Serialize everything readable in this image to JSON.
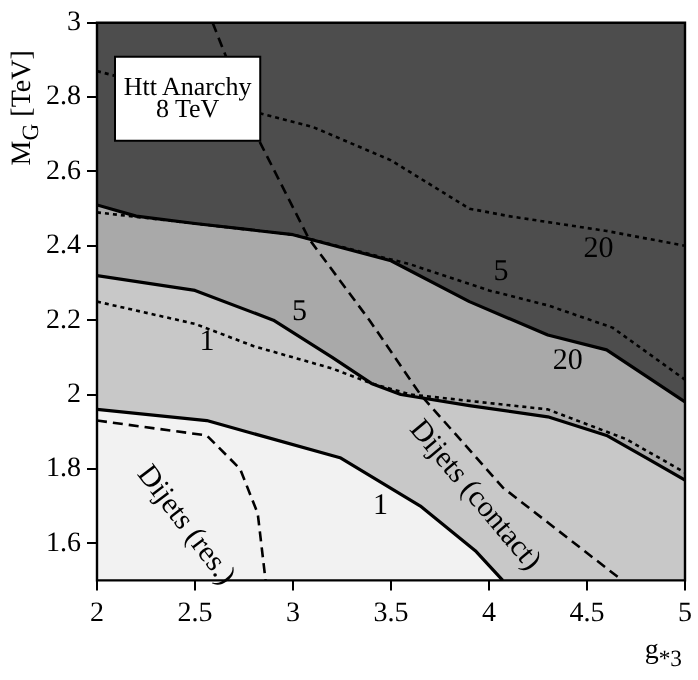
{
  "chart_data": {
    "type": "line",
    "xlabel": "g$_{*3}$",
    "ylabel": "M$_{G}$ [TeV]",
    "xlim": [
      2,
      5
    ],
    "xticks": [
      2,
      2.5,
      3,
      3.5,
      4,
      4.5,
      5
    ],
    "ylim": [
      1.5,
      3
    ],
    "yticks": [
      1.6,
      1.8,
      2,
      2.2,
      2.4,
      2.6,
      2.8,
      3
    ],
    "legend": false,
    "series": [
      {
        "type": "area",
        "color": "#a9a9a9",
        "line_style": "solid",
        "x": [
          2,
          2.2,
          2.5,
          3,
          3.5,
          3.9,
          4.3,
          4.6,
          4.8,
          5
        ],
        "values": [
          2.51,
          2.48,
          2.46,
          2.43,
          2.36,
          2.25,
          2.16,
          2.12,
          2.05,
          1.98
        ]
      },
      {
        "type": "area",
        "color": "#c8c8c8",
        "line_style": "solid",
        "x": [
          2,
          2.5,
          2.9,
          3.2,
          3.4,
          3.55,
          3.9,
          4.3,
          4.6,
          4.8,
          5
        ],
        "values": [
          2.32,
          2.28,
          2.2,
          2.1,
          2.03,
          2,
          1.97,
          1.94,
          1.89,
          1.83,
          1.77
        ]
      },
      {
        "type": "area",
        "color": "#f2f2f2",
        "line_style": "solid",
        "x": [
          2,
          2.56,
          3.24,
          3.65,
          3.93,
          4.07
        ],
        "values": [
          1.96,
          1.93,
          1.83,
          1.7,
          1.58,
          1.5
        ]
      },
      {
        "type": "line",
        "color": "#000000",
        "line_style": "dotted",
        "x": [
          2,
          2.5,
          2.8,
          3.2,
          3.4,
          3.6,
          4.3,
          4.7,
          5
        ],
        "values": [
          2.25,
          2.19,
          2.13,
          2.07,
          2.03,
          2,
          1.96,
          1.88,
          1.79
        ]
      },
      {
        "type": "line",
        "color": "#000000",
        "line_style": "dotted",
        "x": [
          2,
          3,
          3.6,
          4,
          4.3,
          4.63,
          5
        ],
        "values": [
          2.49,
          2.43,
          2.35,
          2.28,
          2.24,
          2.18,
          2.04
        ]
      },
      {
        "type": "line",
        "color": "#000000",
        "line_style": "dotted",
        "x": [
          2,
          3.1,
          3.5,
          3.9,
          4.1,
          4.6,
          5
        ],
        "values": [
          2.87,
          2.72,
          2.63,
          2.5,
          2.48,
          2.44,
          2.4
        ]
      },
      {
        "type": "line",
        "color": "#000000",
        "line_style": "dashed",
        "x": [
          2,
          2.56,
          2.73,
          2.82,
          2.86
        ],
        "values": [
          1.93,
          1.89,
          1.8,
          1.68,
          1.5
        ]
      },
      {
        "type": "line",
        "color": "#000000",
        "line_style": "dashed",
        "x": [
          2.59,
          2.83,
          3.08,
          3.39,
          3.65,
          4.07,
          4.68
        ],
        "values": [
          3,
          2.68,
          2.42,
          2.2,
          2,
          1.75,
          1.5
        ]
      }
    ],
    "annotations": [
      "Htt Anarchy\n8 TeV",
      {
        "text": "1",
        "x": 2.5,
        "y": 2.19
      },
      {
        "text": "5",
        "x": 2.9,
        "y": 2.2
      },
      {
        "text": "5",
        "x": 4.0,
        "y": 2.28
      },
      {
        "text": "20",
        "x": 4.3,
        "y": 2.16
      },
      {
        "text": "20",
        "x": 4.6,
        "y": 2.44
      },
      {
        "text": "1",
        "x": 3.65,
        "y": 1.7
      },
      {
        "text": "Dijets (res.)",
        "x": 2.82,
        "y": 1.68
      },
      {
        "text": "Dijets (contact)",
        "x": 4.07,
        "y": 1.75
      }
    ]
  }
}
